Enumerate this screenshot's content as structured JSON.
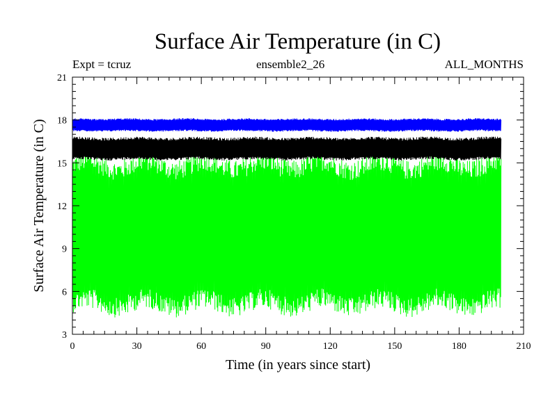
{
  "header": {
    "title": "Surface Air Temperature (in C)",
    "left": "Expt = tcruz",
    "center": "ensemble2_26",
    "right": "ALL_MONTHS"
  },
  "chart_data": {
    "type": "line",
    "title": "Surface Air Temperature (in C)",
    "xlabel": "Time (in years since start)",
    "ylabel": "Surface Air Temperature (in C)",
    "xlim": [
      0,
      210
    ],
    "ylim": [
      3,
      21
    ],
    "xticks": [
      0,
      30,
      60,
      90,
      120,
      150,
      180,
      210
    ],
    "yticks": [
      3,
      6,
      9,
      12,
      15,
      18,
      21
    ],
    "x_range": [
      0,
      199.5
    ],
    "grid": false,
    "series": [
      {
        "color": "#00ff00",
        "min_approx": 4.5,
        "max_approx": 15.5
      },
      {
        "color": "#000000",
        "min_approx": 15.2,
        "max_approx": 16.8
      },
      {
        "color": "#0000ff",
        "min_approx": 17.2,
        "max_approx": 18.1
      }
    ]
  }
}
